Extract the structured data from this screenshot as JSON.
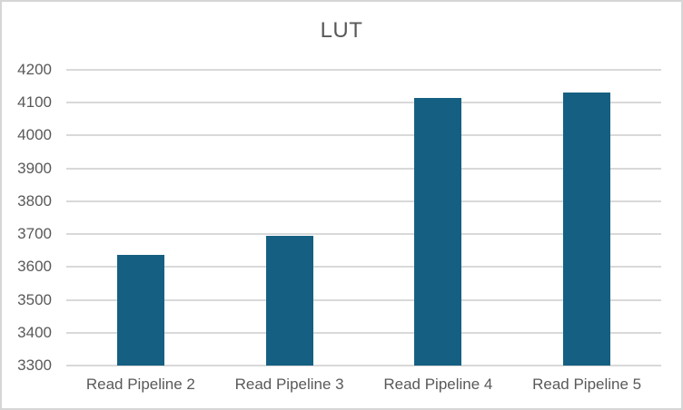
{
  "chart_data": {
    "type": "bar",
    "title": "LUT",
    "categories": [
      "Read Pipeline 2",
      "Read Pipeline 3",
      "Read Pipeline 4",
      "Read Pipeline 5"
    ],
    "values": [
      3637,
      3694,
      4114,
      4132
    ],
    "xlabel": "",
    "ylabel": "",
    "ylim": [
      3300,
      4200
    ],
    "ytick_step": 100,
    "yticks": [
      3300,
      3400,
      3500,
      3600,
      3700,
      3800,
      3900,
      4000,
      4100,
      4200
    ],
    "grid": true,
    "legend": "none",
    "series_name": "LUT",
    "colors": {
      "bar": "#156082",
      "gridline": "#d9d9d9",
      "axis_text": "#595959",
      "title_text": "#595959",
      "background": "#ffffff",
      "border": "#d6d6d6"
    }
  }
}
